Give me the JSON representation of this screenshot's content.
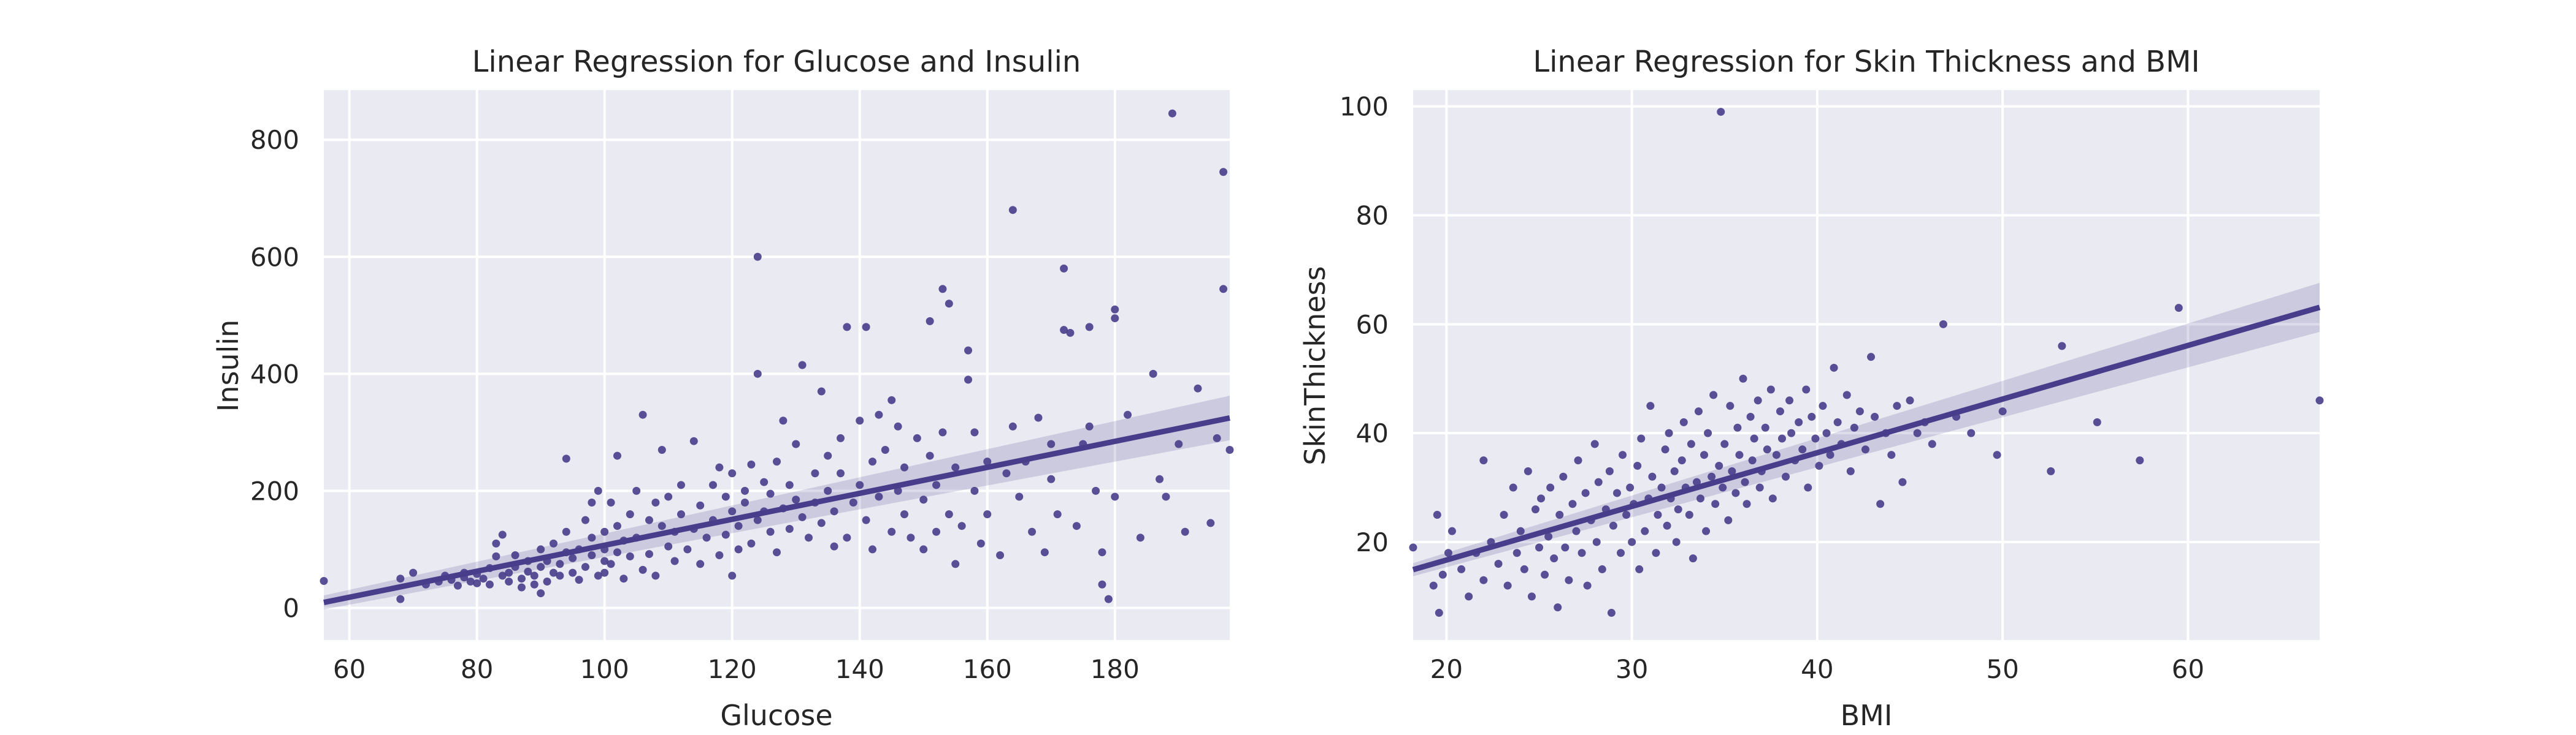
{
  "figure": {
    "background": "#ffffff",
    "plot_background": "#eaeaf2",
    "grid_color": "#ffffff",
    "point_color": "#483d8b",
    "line_color": "#483d8b"
  },
  "chart_data": [
    {
      "type": "scatter",
      "title": "Linear Regression for Glucose and Insulin",
      "xlabel": "Glucose",
      "ylabel": "Insulin",
      "xlim": [
        56,
        198
      ],
      "ylim": [
        -55,
        885
      ],
      "xticks": [
        60,
        80,
        100,
        120,
        140,
        160,
        180
      ],
      "yticks": [
        0,
        200,
        400,
        600,
        800
      ],
      "grid": true,
      "regression": {
        "slope": 2.22,
        "intercept": -115,
        "ci_half_start": 12,
        "ci_half_end": 38
      },
      "points": [
        [
          56,
          46
        ],
        [
          68,
          15
        ],
        [
          68,
          50
        ],
        [
          70,
          60
        ],
        [
          72,
          40
        ],
        [
          74,
          45
        ],
        [
          75,
          55
        ],
        [
          76,
          48
        ],
        [
          77,
          38
        ],
        [
          78,
          52
        ],
        [
          78,
          60
        ],
        [
          79,
          45
        ],
        [
          80,
          42
        ],
        [
          80,
          58
        ],
        [
          81,
          50
        ],
        [
          82,
          68
        ],
        [
          82,
          40
        ],
        [
          83,
          110
        ],
        [
          83,
          88
        ],
        [
          84,
          55
        ],
        [
          84,
          125
        ],
        [
          85,
          60
        ],
        [
          85,
          45
        ],
        [
          86,
          70
        ],
        [
          86,
          90
        ],
        [
          87,
          50
        ],
        [
          87,
          35
        ],
        [
          88,
          80
        ],
        [
          88,
          62
        ],
        [
          89,
          40
        ],
        [
          89,
          55
        ],
        [
          90,
          25
        ],
        [
          90,
          70
        ],
        [
          90,
          100
        ],
        [
          91,
          45
        ],
        [
          91,
          80
        ],
        [
          92,
          60
        ],
        [
          92,
          110
        ],
        [
          93,
          55
        ],
        [
          93,
          75
        ],
        [
          94,
          95
        ],
        [
          94,
          130
        ],
        [
          94,
          255
        ],
        [
          95,
          60
        ],
        [
          95,
          85
        ],
        [
          96,
          100
        ],
        [
          96,
          48
        ],
        [
          97,
          150
        ],
        [
          97,
          70
        ],
        [
          98,
          90
        ],
        [
          98,
          120
        ],
        [
          98,
          180
        ],
        [
          99,
          55
        ],
        [
          99,
          200
        ],
        [
          100,
          100
        ],
        [
          100,
          80
        ],
        [
          100,
          130
        ],
        [
          100,
          60
        ],
        [
          101,
          180
        ],
        [
          101,
          75
        ],
        [
          102,
          140
        ],
        [
          102,
          95
        ],
        [
          102,
          260
        ],
        [
          103,
          50
        ],
        [
          103,
          115
        ],
        [
          104,
          160
        ],
        [
          104,
          88
        ],
        [
          105,
          200
        ],
        [
          105,
          120
        ],
        [
          106,
          65
        ],
        [
          106,
          330
        ],
        [
          107,
          150
        ],
        [
          107,
          92
        ],
        [
          108,
          180
        ],
        [
          108,
          55
        ],
        [
          109,
          140
        ],
        [
          109,
          270
        ],
        [
          110,
          105
        ],
        [
          110,
          190
        ],
        [
          111,
          130
        ],
        [
          111,
          80
        ],
        [
          112,
          210
        ],
        [
          112,
          160
        ],
        [
          113,
          100
        ],
        [
          114,
          135
        ],
        [
          114,
          285
        ],
        [
          115,
          75
        ],
        [
          115,
          175
        ],
        [
          116,
          120
        ],
        [
          117,
          210
        ],
        [
          117,
          150
        ],
        [
          118,
          90
        ],
        [
          118,
          240
        ],
        [
          119,
          125
        ],
        [
          119,
          190
        ],
        [
          120,
          55
        ],
        [
          120,
          165
        ],
        [
          120,
          230
        ],
        [
          121,
          100
        ],
        [
          121,
          140
        ],
        [
          122,
          200
        ],
        [
          122,
          180
        ],
        [
          123,
          110
        ],
        [
          123,
          245
        ],
        [
          124,
          150
        ],
        [
          124,
          600
        ],
        [
          124,
          400
        ],
        [
          125,
          215
        ],
        [
          125,
          165
        ],
        [
          126,
          130
        ],
        [
          126,
          195
        ],
        [
          127,
          250
        ],
        [
          127,
          95
        ],
        [
          128,
          320
        ],
        [
          128,
          170
        ],
        [
          129,
          135
        ],
        [
          129,
          210
        ],
        [
          130,
          185
        ],
        [
          130,
          280
        ],
        [
          131,
          155
        ],
        [
          131,
          415
        ],
        [
          132,
          120
        ],
        [
          133,
          230
        ],
        [
          133,
          180
        ],
        [
          134,
          370
        ],
        [
          134,
          145
        ],
        [
          135,
          260
        ],
        [
          135,
          200
        ],
        [
          136,
          105
        ],
        [
          136,
          165
        ],
        [
          137,
          290
        ],
        [
          137,
          230
        ],
        [
          138,
          120
        ],
        [
          138,
          480
        ],
        [
          139,
          180
        ],
        [
          140,
          320
        ],
        [
          140,
          210
        ],
        [
          141,
          480
        ],
        [
          141,
          150
        ],
        [
          142,
          250
        ],
        [
          142,
          100
        ],
        [
          143,
          330
        ],
        [
          143,
          190
        ],
        [
          144,
          270
        ],
        [
          145,
          355
        ],
        [
          145,
          130
        ],
        [
          146,
          200
        ],
        [
          146,
          310
        ],
        [
          147,
          160
        ],
        [
          147,
          240
        ],
        [
          148,
          120
        ],
        [
          149,
          290
        ],
        [
          150,
          185
        ],
        [
          150,
          100
        ],
        [
          151,
          260
        ],
        [
          151,
          490
        ],
        [
          152,
          130
        ],
        [
          152,
          210
        ],
        [
          153,
          545
        ],
        [
          153,
          300
        ],
        [
          154,
          160
        ],
        [
          154,
          520
        ],
        [
          155,
          240
        ],
        [
          155,
          75
        ],
        [
          156,
          140
        ],
        [
          157,
          440
        ],
        [
          157,
          390
        ],
        [
          158,
          300
        ],
        [
          158,
          200
        ],
        [
          159,
          110
        ],
        [
          160,
          250
        ],
        [
          160,
          160
        ],
        [
          162,
          90
        ],
        [
          163,
          230
        ],
        [
          164,
          310
        ],
        [
          164,
          680
        ],
        [
          165,
          190
        ],
        [
          166,
          250
        ],
        [
          167,
          130
        ],
        [
          168,
          325
        ],
        [
          169,
          95
        ],
        [
          170,
          280
        ],
        [
          170,
          220
        ],
        [
          171,
          160
        ],
        [
          172,
          580
        ],
        [
          172,
          475
        ],
        [
          173,
          470
        ],
        [
          174,
          140
        ],
        [
          175,
          280
        ],
        [
          176,
          310
        ],
        [
          176,
          480
        ],
        [
          177,
          200
        ],
        [
          178,
          40
        ],
        [
          178,
          95
        ],
        [
          179,
          15
        ],
        [
          180,
          510
        ],
        [
          180,
          495
        ],
        [
          180,
          190
        ],
        [
          182,
          330
        ],
        [
          184,
          120
        ],
        [
          186,
          400
        ],
        [
          187,
          220
        ],
        [
          188,
          190
        ],
        [
          189,
          845
        ],
        [
          190,
          280
        ],
        [
          191,
          130
        ],
        [
          193,
          375
        ],
        [
          195,
          145
        ],
        [
          196,
          290
        ],
        [
          197,
          745
        ],
        [
          197,
          545
        ],
        [
          198,
          270
        ]
      ]
    },
    {
      "type": "scatter",
      "title": "Linear Regression for Skin Thickness and BMI",
      "xlabel": "BMI",
      "ylabel": "SkinThickness",
      "xlim": [
        18.2,
        67.1
      ],
      "ylim": [
        2,
        103
      ],
      "xticks": [
        20,
        30,
        40,
        50,
        60
      ],
      "yticks": [
        20,
        40,
        60,
        80,
        100
      ],
      "grid": true,
      "regression": {
        "slope": 0.985,
        "intercept": -3.0,
        "ci_half_start": 1.2,
        "ci_half_end": 4.5
      },
      "points": [
        [
          18.2,
          19
        ],
        [
          19.3,
          12
        ],
        [
          19.5,
          25
        ],
        [
          19.6,
          7
        ],
        [
          19.8,
          14
        ],
        [
          20.1,
          18
        ],
        [
          20.3,
          22
        ],
        [
          20.8,
          15
        ],
        [
          21.2,
          10
        ],
        [
          21.6,
          18
        ],
        [
          22.0,
          13
        ],
        [
          22.0,
          35
        ],
        [
          22.4,
          20
        ],
        [
          22.8,
          16
        ],
        [
          23.1,
          25
        ],
        [
          23.3,
          12
        ],
        [
          23.6,
          30
        ],
        [
          23.8,
          18
        ],
        [
          24.0,
          22
        ],
        [
          24.2,
          15
        ],
        [
          24.4,
          33
        ],
        [
          24.6,
          10
        ],
        [
          24.8,
          26
        ],
        [
          25.0,
          19
        ],
        [
          25.1,
          28
        ],
        [
          25.3,
          14
        ],
        [
          25.5,
          21
        ],
        [
          25.6,
          30
        ],
        [
          25.8,
          17
        ],
        [
          26.0,
          8
        ],
        [
          26.1,
          25
        ],
        [
          26.3,
          32
        ],
        [
          26.4,
          19
        ],
        [
          26.6,
          13
        ],
        [
          26.8,
          27
        ],
        [
          27.0,
          22
        ],
        [
          27.1,
          35
        ],
        [
          27.3,
          18
        ],
        [
          27.5,
          29
        ],
        [
          27.6,
          12
        ],
        [
          27.8,
          24
        ],
        [
          28.0,
          38
        ],
        [
          28.1,
          20
        ],
        [
          28.2,
          31
        ],
        [
          28.4,
          15
        ],
        [
          28.6,
          26
        ],
        [
          28.8,
          33
        ],
        [
          28.9,
          7
        ],
        [
          29.0,
          23
        ],
        [
          29.2,
          29
        ],
        [
          29.4,
          18
        ],
        [
          29.5,
          36
        ],
        [
          29.7,
          25
        ],
        [
          29.9,
          30
        ],
        [
          30.0,
          20
        ],
        [
          30.1,
          27
        ],
        [
          30.3,
          34
        ],
        [
          30.4,
          15
        ],
        [
          30.5,
          39
        ],
        [
          30.7,
          22
        ],
        [
          30.9,
          28
        ],
        [
          31.0,
          45
        ],
        [
          31.1,
          32
        ],
        [
          31.3,
          18
        ],
        [
          31.4,
          25
        ],
        [
          31.6,
          30
        ],
        [
          31.8,
          37
        ],
        [
          31.9,
          23
        ],
        [
          32.0,
          40
        ],
        [
          32.1,
          28
        ],
        [
          32.3,
          33
        ],
        [
          32.4,
          20
        ],
        [
          32.5,
          26
        ],
        [
          32.7,
          35
        ],
        [
          32.8,
          42
        ],
        [
          32.9,
          30
        ],
        [
          33.1,
          25
        ],
        [
          33.2,
          38
        ],
        [
          33.3,
          17
        ],
        [
          33.5,
          31
        ],
        [
          33.6,
          44
        ],
        [
          33.7,
          28
        ],
        [
          33.9,
          36
        ],
        [
          34.0,
          22
        ],
        [
          34.1,
          40
        ],
        [
          34.3,
          32
        ],
        [
          34.4,
          47
        ],
        [
          34.5,
          27
        ],
        [
          34.7,
          34
        ],
        [
          34.8,
          99
        ],
        [
          34.9,
          30
        ],
        [
          35.0,
          38
        ],
        [
          35.2,
          24
        ],
        [
          35.3,
          45
        ],
        [
          35.4,
          33
        ],
        [
          35.6,
          29
        ],
        [
          35.7,
          41
        ],
        [
          35.8,
          36
        ],
        [
          36.0,
          50
        ],
        [
          36.1,
          31
        ],
        [
          36.2,
          27
        ],
        [
          36.4,
          43
        ],
        [
          36.5,
          35
        ],
        [
          36.6,
          39
        ],
        [
          36.8,
          46
        ],
        [
          36.9,
          30
        ],
        [
          37.0,
          33
        ],
        [
          37.2,
          41
        ],
        [
          37.3,
          37
        ],
        [
          37.5,
          48
        ],
        [
          37.6,
          28
        ],
        [
          37.8,
          36
        ],
        [
          38.0,
          44
        ],
        [
          38.1,
          39
        ],
        [
          38.3,
          32
        ],
        [
          38.5,
          46
        ],
        [
          38.6,
          40
        ],
        [
          38.8,
          35
        ],
        [
          39.0,
          42
        ],
        [
          39.2,
          37
        ],
        [
          39.4,
          48
        ],
        [
          39.5,
          30
        ],
        [
          39.7,
          43
        ],
        [
          39.9,
          39
        ],
        [
          40.1,
          34
        ],
        [
          40.3,
          45
        ],
        [
          40.5,
          40
        ],
        [
          40.7,
          36
        ],
        [
          40.9,
          52
        ],
        [
          41.1,
          42
        ],
        [
          41.3,
          38
        ],
        [
          41.6,
          47
        ],
        [
          41.8,
          33
        ],
        [
          42.0,
          41
        ],
        [
          42.3,
          44
        ],
        [
          42.6,
          37
        ],
        [
          42.9,
          54
        ],
        [
          43.1,
          43
        ],
        [
          43.4,
          27
        ],
        [
          43.7,
          40
        ],
        [
          44.0,
          36
        ],
        [
          44.3,
          45
        ],
        [
          44.6,
          31
        ],
        [
          45.0,
          46
        ],
        [
          45.4,
          40
        ],
        [
          45.8,
          42
        ],
        [
          46.2,
          38
        ],
        [
          46.8,
          60
        ],
        [
          47.5,
          43
        ],
        [
          48.3,
          40
        ],
        [
          49.7,
          36
        ],
        [
          50.0,
          44
        ],
        [
          52.6,
          33
        ],
        [
          53.2,
          56
        ],
        [
          55.1,
          42
        ],
        [
          57.4,
          35
        ],
        [
          59.5,
          63
        ],
        [
          67.1,
          46
        ]
      ]
    }
  ]
}
